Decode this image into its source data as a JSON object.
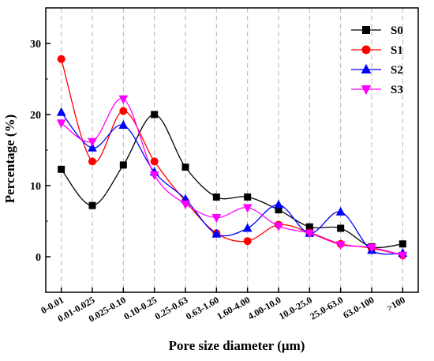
{
  "chart_data": {
    "type": "line",
    "xlabel": "Pore size diameter (μm)",
    "ylabel": "Percentage (%)",
    "categories": [
      "0-0.01",
      "0.01-0.025",
      "0.025-0.10",
      "0.10-0.25",
      "0.25-0.63",
      "0.63-1.60",
      "1.60-4.00",
      "4.00-10.0",
      "10.0-25.0",
      "25.0-63.0",
      "63.0-100",
      ">100"
    ],
    "ylim": [
      -5,
      35
    ],
    "yticks": [
      0,
      10,
      20,
      30
    ],
    "grid": "vertical-dashed",
    "legend_position": "top-right",
    "series": [
      {
        "name": "S0",
        "color": "#000000",
        "marker": "square",
        "values": [
          12.3,
          7.2,
          12.9,
          20.0,
          12.6,
          8.4,
          8.4,
          6.6,
          4.2,
          4.0,
          1.4,
          1.8
        ]
      },
      {
        "name": "S1",
        "color": "#ff0000",
        "marker": "circle",
        "values": [
          27.8,
          13.4,
          20.5,
          13.4,
          7.8,
          3.3,
          2.2,
          4.5,
          3.4,
          1.8,
          1.2,
          0.2
        ]
      },
      {
        "name": "S2",
        "color": "#0000ff",
        "marker": "triangle-up",
        "values": [
          20.3,
          15.3,
          18.5,
          11.9,
          8.1,
          3.2,
          4.0,
          7.3,
          3.3,
          6.3,
          0.9,
          0.5
        ]
      },
      {
        "name": "S3",
        "color": "#ff00ff",
        "marker": "triangle-down",
        "values": [
          18.8,
          16.2,
          22.2,
          11.5,
          7.4,
          5.5,
          6.9,
          4.3,
          3.3,
          1.7,
          1.3,
          0.2
        ]
      }
    ]
  }
}
